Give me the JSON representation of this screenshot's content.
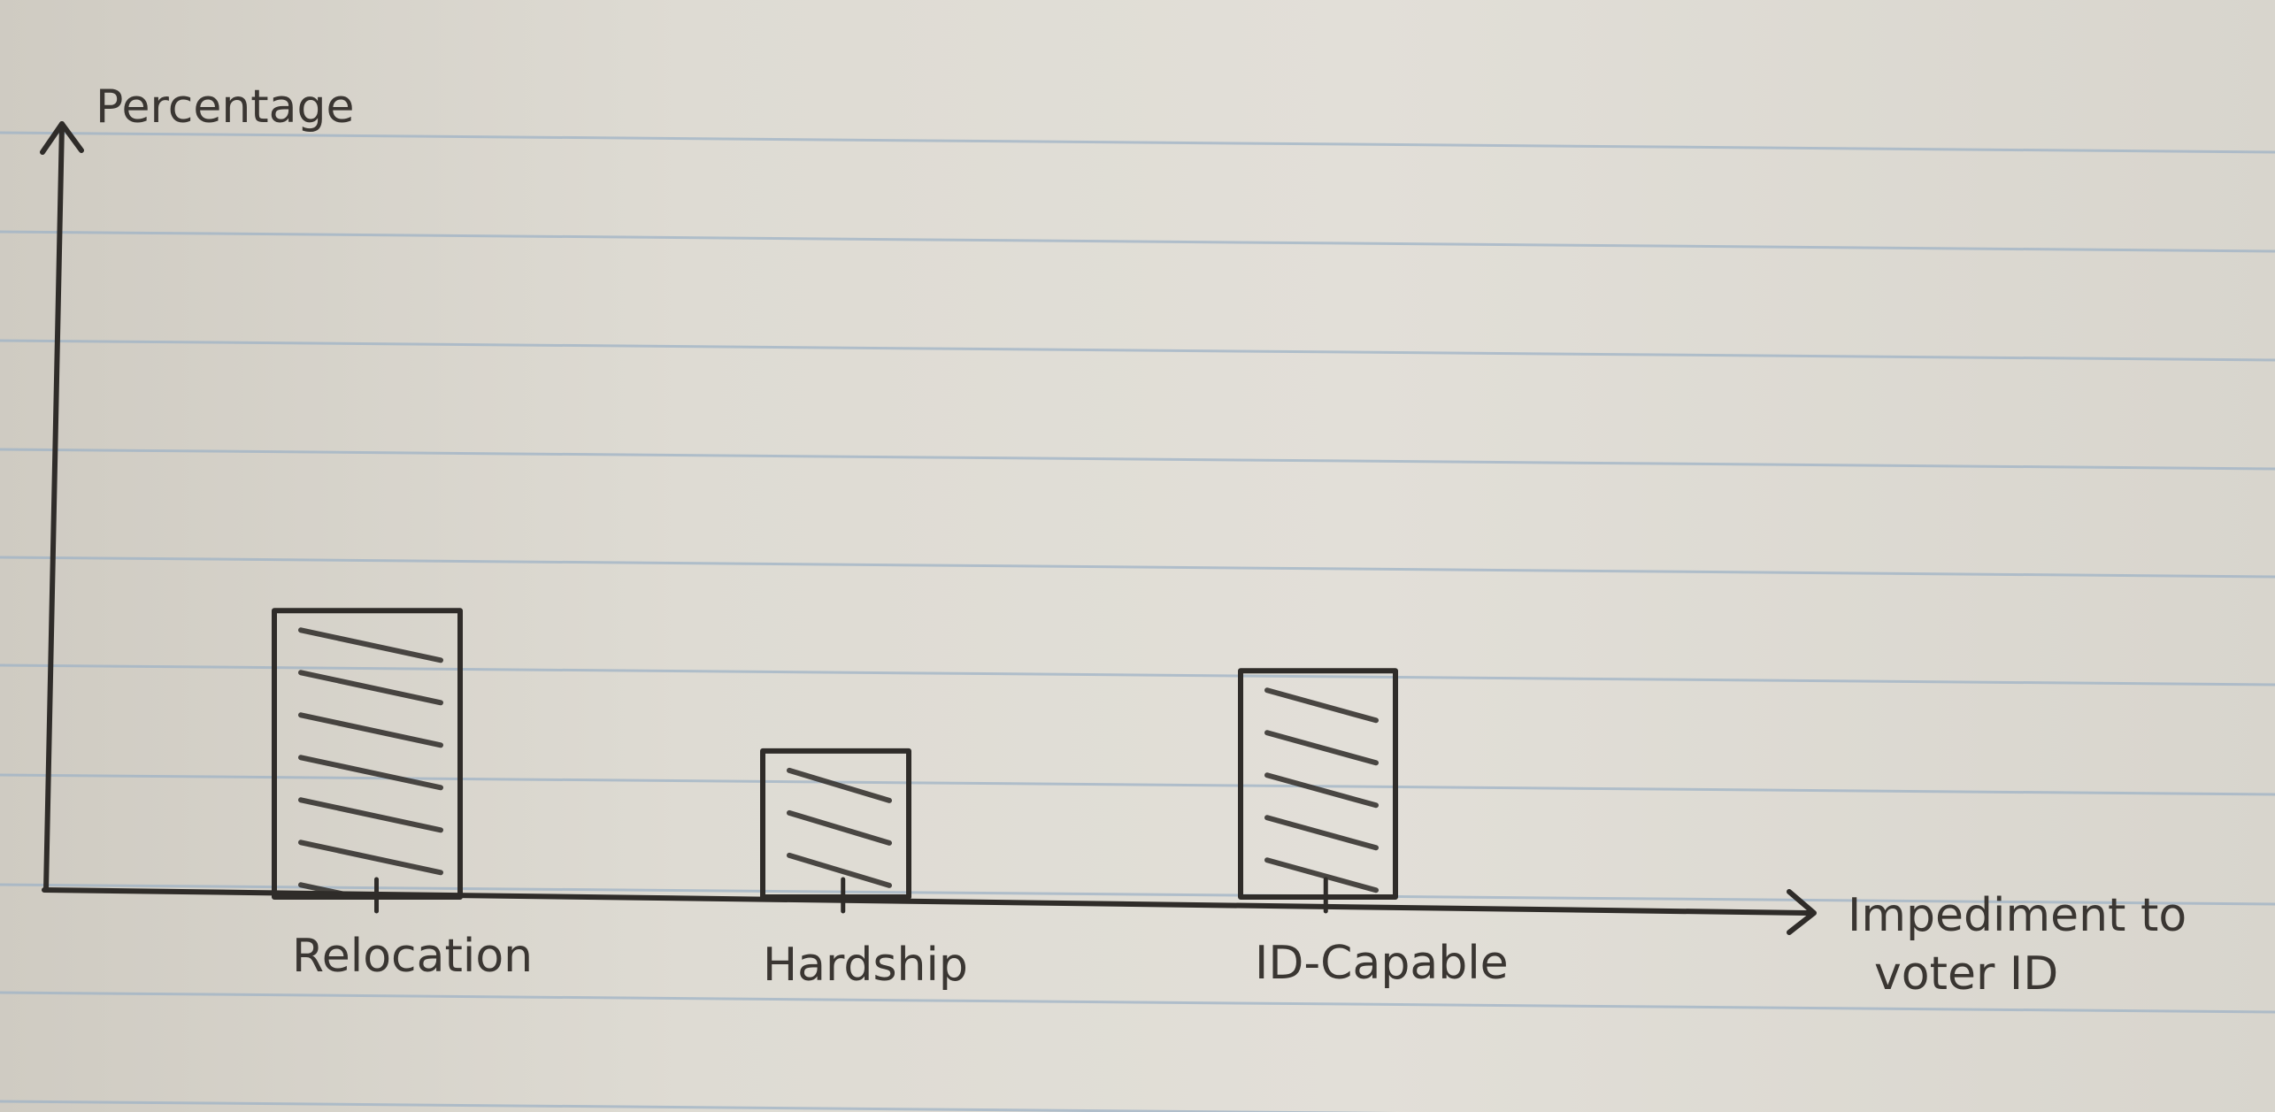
{
  "chart_data": {
    "type": "bar",
    "title": "",
    "ylabel": "Percentage",
    "xlabel": [
      "Impediment to",
      "voter ID"
    ],
    "categories": [
      "Relocation",
      "Hardship",
      "ID-Capable"
    ],
    "values": [
      100,
      51,
      79
    ],
    "ylim": [
      0,
      270
    ],
    "y_ticks_shown": false,
    "grid": false,
    "legend": "none",
    "fill_pattern": "diagonal hatching",
    "colors": {
      "ink": "#2f2c29",
      "paper_line": "#9fb3c6"
    }
  }
}
